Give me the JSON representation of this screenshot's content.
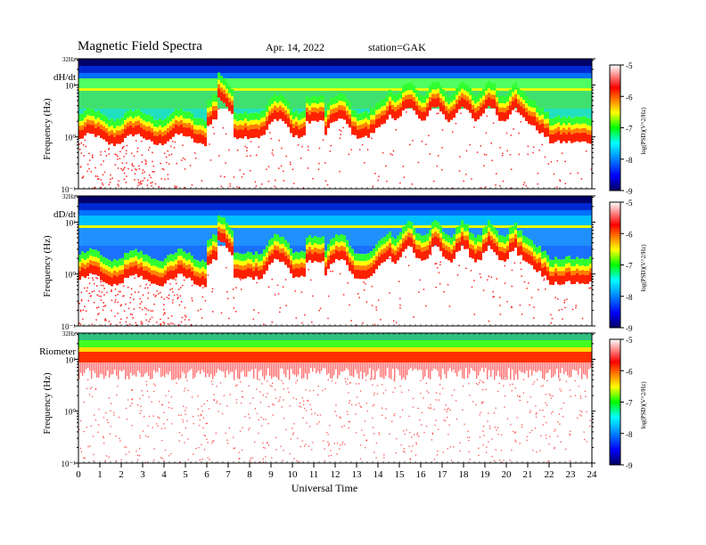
{
  "header": {
    "title": "Magnetic  Field  Spectra",
    "date": "Apr. 14, 2022",
    "station": "station=GAK"
  },
  "chart_data": {
    "type": "heatmap",
    "xlabel": "Universal Time",
    "x_ticks": [
      "0",
      "1",
      "2",
      "3",
      "4",
      "5",
      "6",
      "7",
      "8",
      "9",
      "10",
      "11",
      "12",
      "13",
      "14",
      "15",
      "16",
      "17",
      "18",
      "19",
      "20",
      "21",
      "22",
      "23",
      "24"
    ],
    "xlim": [
      0,
      24
    ],
    "ylabel": "Frequency  (Hz)",
    "y_scale": "log",
    "y_ticks": [
      "32Hz",
      "10¹",
      "10⁰",
      "10⁻¹"
    ],
    "colorbar": {
      "label": "log(PSD)(V^2/Hz)",
      "ticks": [
        "-5",
        "-6",
        "-7",
        "-8",
        "-9"
      ],
      "range": [
        -9,
        -5
      ],
      "colors": [
        "#000070",
        "#0000ff",
        "#00a0ff",
        "#00ffff",
        "#00ff00",
        "#ffff00",
        "#ff8000",
        "#ff0000",
        "#ffffff"
      ]
    },
    "panels": [
      {
        "label": "dH/dt"
      },
      {
        "label": "dD/dt"
      },
      {
        "label": "Riometer"
      }
    ]
  }
}
